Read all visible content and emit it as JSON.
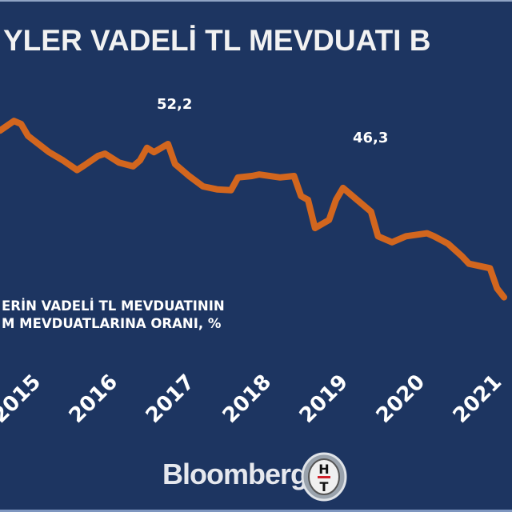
{
  "chart_data": {
    "type": "line",
    "title": "YLER VADELİ TL MEVDUATI B",
    "subtitle": [
      "ERİN VADELİ TL MEVDUATININ",
      "M MEVDUATLARINA ORANI, %"
    ],
    "xlabel": "",
    "ylabel": "",
    "x_tick_labels": [
      "2015",
      "2016",
      "2017",
      "2018",
      "2019",
      "2020",
      "2021"
    ],
    "grid": false,
    "line_color": "#d2661e",
    "background": "#1d3561",
    "annotations": [
      {
        "x": "2017-01",
        "value": 52.2,
        "label": "52,2"
      },
      {
        "x": "2019-02",
        "value": 46.3,
        "label": "46,3"
      }
    ],
    "series": [
      {
        "x": [
          "2015-01",
          "2015-03",
          "2015-04",
          "2015-05",
          "2015-08",
          "2015-10",
          "2015-12",
          "2016-01",
          "2016-03",
          "2016-04",
          "2016-06",
          "2016-08",
          "2016-09",
          "2016-10",
          "2016-11",
          "2017-01",
          "2017-02",
          "2017-04",
          "2017-06",
          "2017-08",
          "2017-10",
          "2017-11",
          "2018-01",
          "2018-02",
          "2018-05",
          "2018-07",
          "2018-08",
          "2018-09",
          "2018-10",
          "2018-12",
          "2019-01",
          "2019-02",
          "2019-04",
          "2019-06",
          "2019-07",
          "2019-09",
          "2019-11",
          "2020-02",
          "2020-03",
          "2020-05",
          "2020-07",
          "2020-08",
          "2020-11",
          "2020-12",
          "2021-01"
        ],
        "values": [
          54.0,
          55.3,
          54.9,
          53.3,
          51.1,
          50.0,
          48.7,
          49.3,
          50.6,
          50.9,
          49.7,
          49.2,
          50.0,
          51.7,
          51.1,
          52.2,
          49.5,
          47.9,
          46.5,
          46.1,
          46.0,
          47.7,
          47.9,
          48.1,
          47.7,
          47.9,
          45.2,
          44.7,
          40.9,
          42.0,
          44.7,
          46.3,
          44.7,
          43.1,
          39.8,
          39.0,
          39.8,
          40.2,
          39.8,
          38.8,
          37.1,
          36.1,
          35.5,
          32.8,
          31.6
        ]
      }
    ]
  },
  "branding": {
    "bloomberg": "Bloomberg",
    "ht_logo": "HT"
  }
}
